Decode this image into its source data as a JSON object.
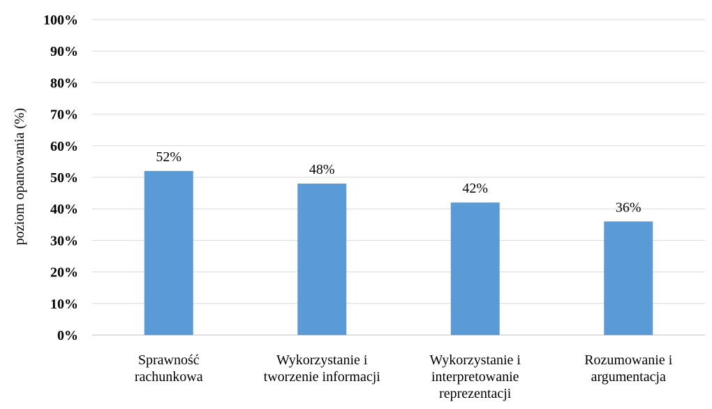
{
  "chart_data": {
    "type": "bar",
    "title": "",
    "xlabel": "",
    "ylabel": "poziom opanowania (%)",
    "ylim": [
      0,
      100
    ],
    "y_ticks": [
      0,
      10,
      20,
      30,
      40,
      50,
      60,
      70,
      80,
      90,
      100
    ],
    "y_tick_suffix": "%",
    "grid": true,
    "legend": "none",
    "bar_color": "#5b9bd5",
    "categories": [
      [
        "Sprawność",
        "rachunkowa"
      ],
      [
        "Wykorzystanie i",
        "tworzenie informacji"
      ],
      [
        "Wykorzystanie i",
        "interpretowanie",
        "reprezentacji"
      ],
      [
        "Rozumowanie i",
        "argumentacja"
      ]
    ],
    "values": [
      52,
      48,
      42,
      36
    ],
    "data_labels": [
      "52%",
      "48%",
      "42%",
      "36%"
    ]
  }
}
